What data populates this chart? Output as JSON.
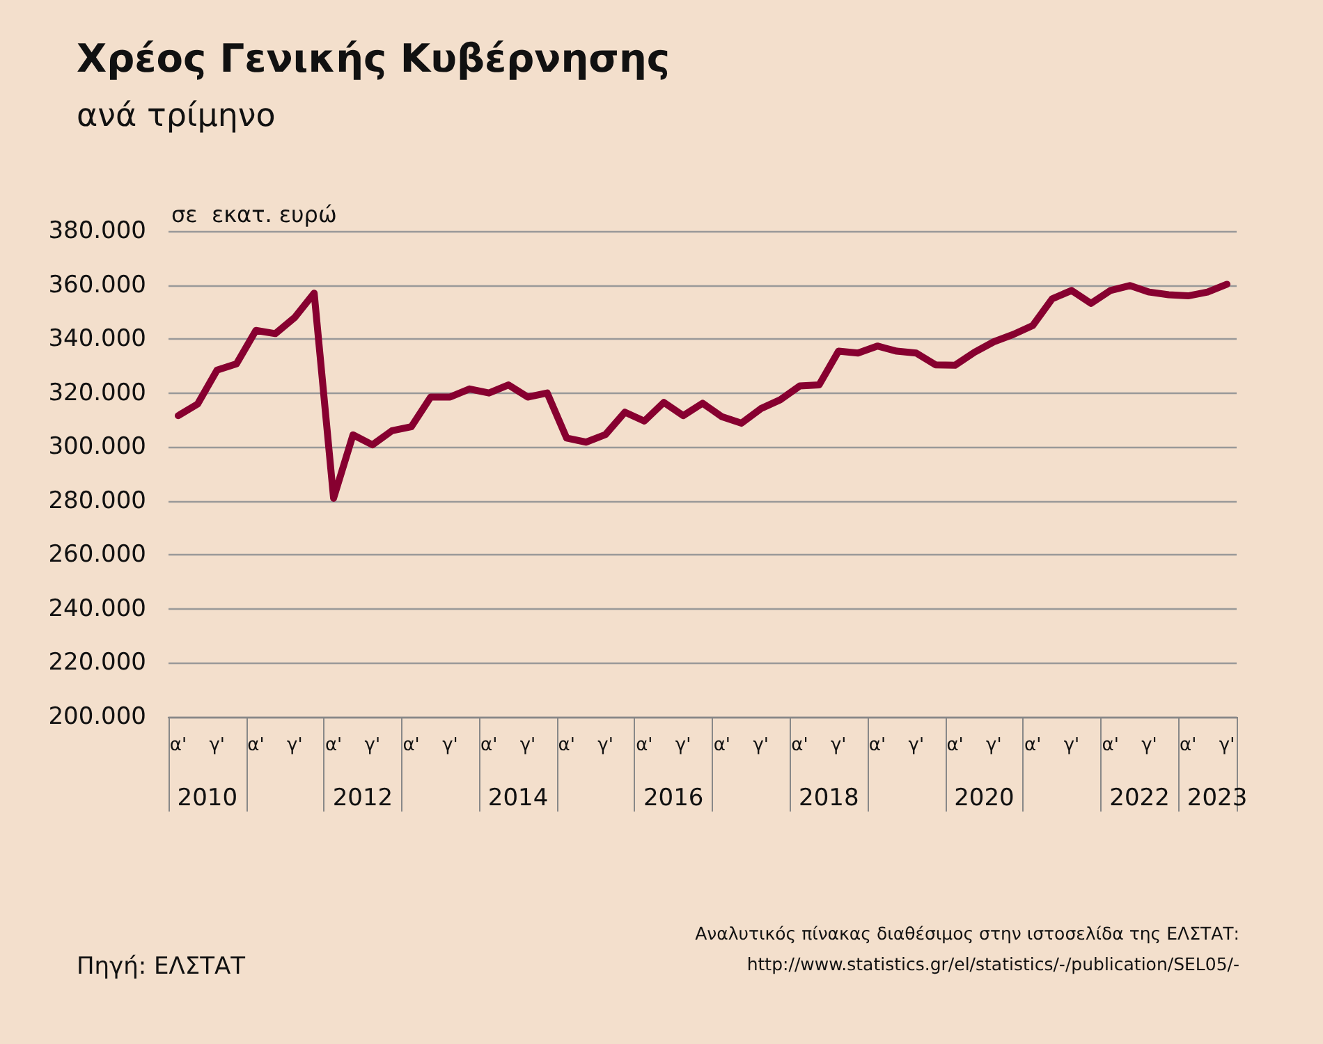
{
  "chart_data": {
    "type": "line",
    "title": "Χρέος Γενικής Κυβέρνησης",
    "subtitle": "ανά τρίμηνο",
    "ylabel": "σε  εκατ. ευρώ",
    "categories": [
      "α'",
      null,
      "γ'",
      null,
      "α'",
      null,
      "γ'",
      null,
      "α'",
      null,
      "γ'",
      null,
      "α'",
      null,
      "γ'",
      null,
      "α'",
      null,
      "γ'",
      null,
      "α'",
      null,
      "γ'",
      null,
      "α'",
      null,
      "γ'",
      null,
      "α'",
      null,
      "γ'",
      null,
      "α'",
      null,
      "γ'",
      null,
      "α'",
      null,
      "γ'",
      null,
      "α'",
      null,
      "γ'",
      null,
      "α'",
      null,
      "γ'",
      null,
      "α'",
      null,
      "γ'",
      null,
      "α'",
      null,
      "γ'"
    ],
    "x2lim": [
      2010,
      2023.75
    ],
    "x2ticks": [
      {
        "value": 2010.5,
        "label": "2010"
      },
      {
        "value": 2012.5,
        "label": "2012"
      },
      {
        "value": 2014.5,
        "label": "2014"
      },
      {
        "value": 2016.5,
        "label": "2016"
      },
      {
        "value": 2018.5,
        "label": "2018"
      },
      {
        "value": 2020.5,
        "label": "2020"
      },
      {
        "value": 2022.5,
        "label": "2022"
      },
      {
        "value": 2023.5,
        "label": "2023"
      }
    ],
    "series": [
      {
        "color": "#870030",
        "values": [
          311600,
          315900,
          328500,
          330800,
          343200,
          342000,
          348000,
          357000,
          281000,
          304500,
          300800,
          306000,
          307500,
          318500,
          318500,
          321500,
          320000,
          323000,
          318500,
          320000,
          303300,
          301800,
          304600,
          312900,
          309600,
          316500,
          311600,
          316200,
          311200,
          308800,
          314200,
          317500,
          322600,
          323000,
          335500,
          334800,
          337400,
          335500,
          334800,
          330400,
          330300,
          335100,
          339000,
          341700,
          345000,
          354900,
          358000,
          353200,
          358000,
          359800,
          357400,
          356400,
          356000,
          357400,
          360300
        ]
      }
    ],
    "ylim": [
      200000,
      380000
    ],
    "yticks": [
      {
        "value": 200000,
        "label": "200.000"
      },
      {
        "value": 220000,
        "label": "220.000"
      },
      {
        "value": 240000,
        "label": "240.000"
      },
      {
        "value": 260000,
        "label": "260.000"
      },
      {
        "value": 280000,
        "label": "280.000"
      },
      {
        "value": 300000,
        "label": "300.000"
      },
      {
        "value": 320000,
        "label": "320.000"
      },
      {
        "value": 340000,
        "label": "340.000"
      },
      {
        "value": 360000,
        "label": "360.000"
      },
      {
        "value": 380000,
        "label": "380.000"
      }
    ],
    "grid": "y",
    "marker": "none",
    "line_style": "solid",
    "annotations": [
      "Πηγή: ΕΛΣΤΑΤ",
      "Αναλυτικός πίνακας διαθέσιμος στην ιστοσελίδα της ΕΛΣΤΑΤ:",
      "http://www.statistics.gr/el/statistics/-/publication/SEL05/-"
    ]
  }
}
